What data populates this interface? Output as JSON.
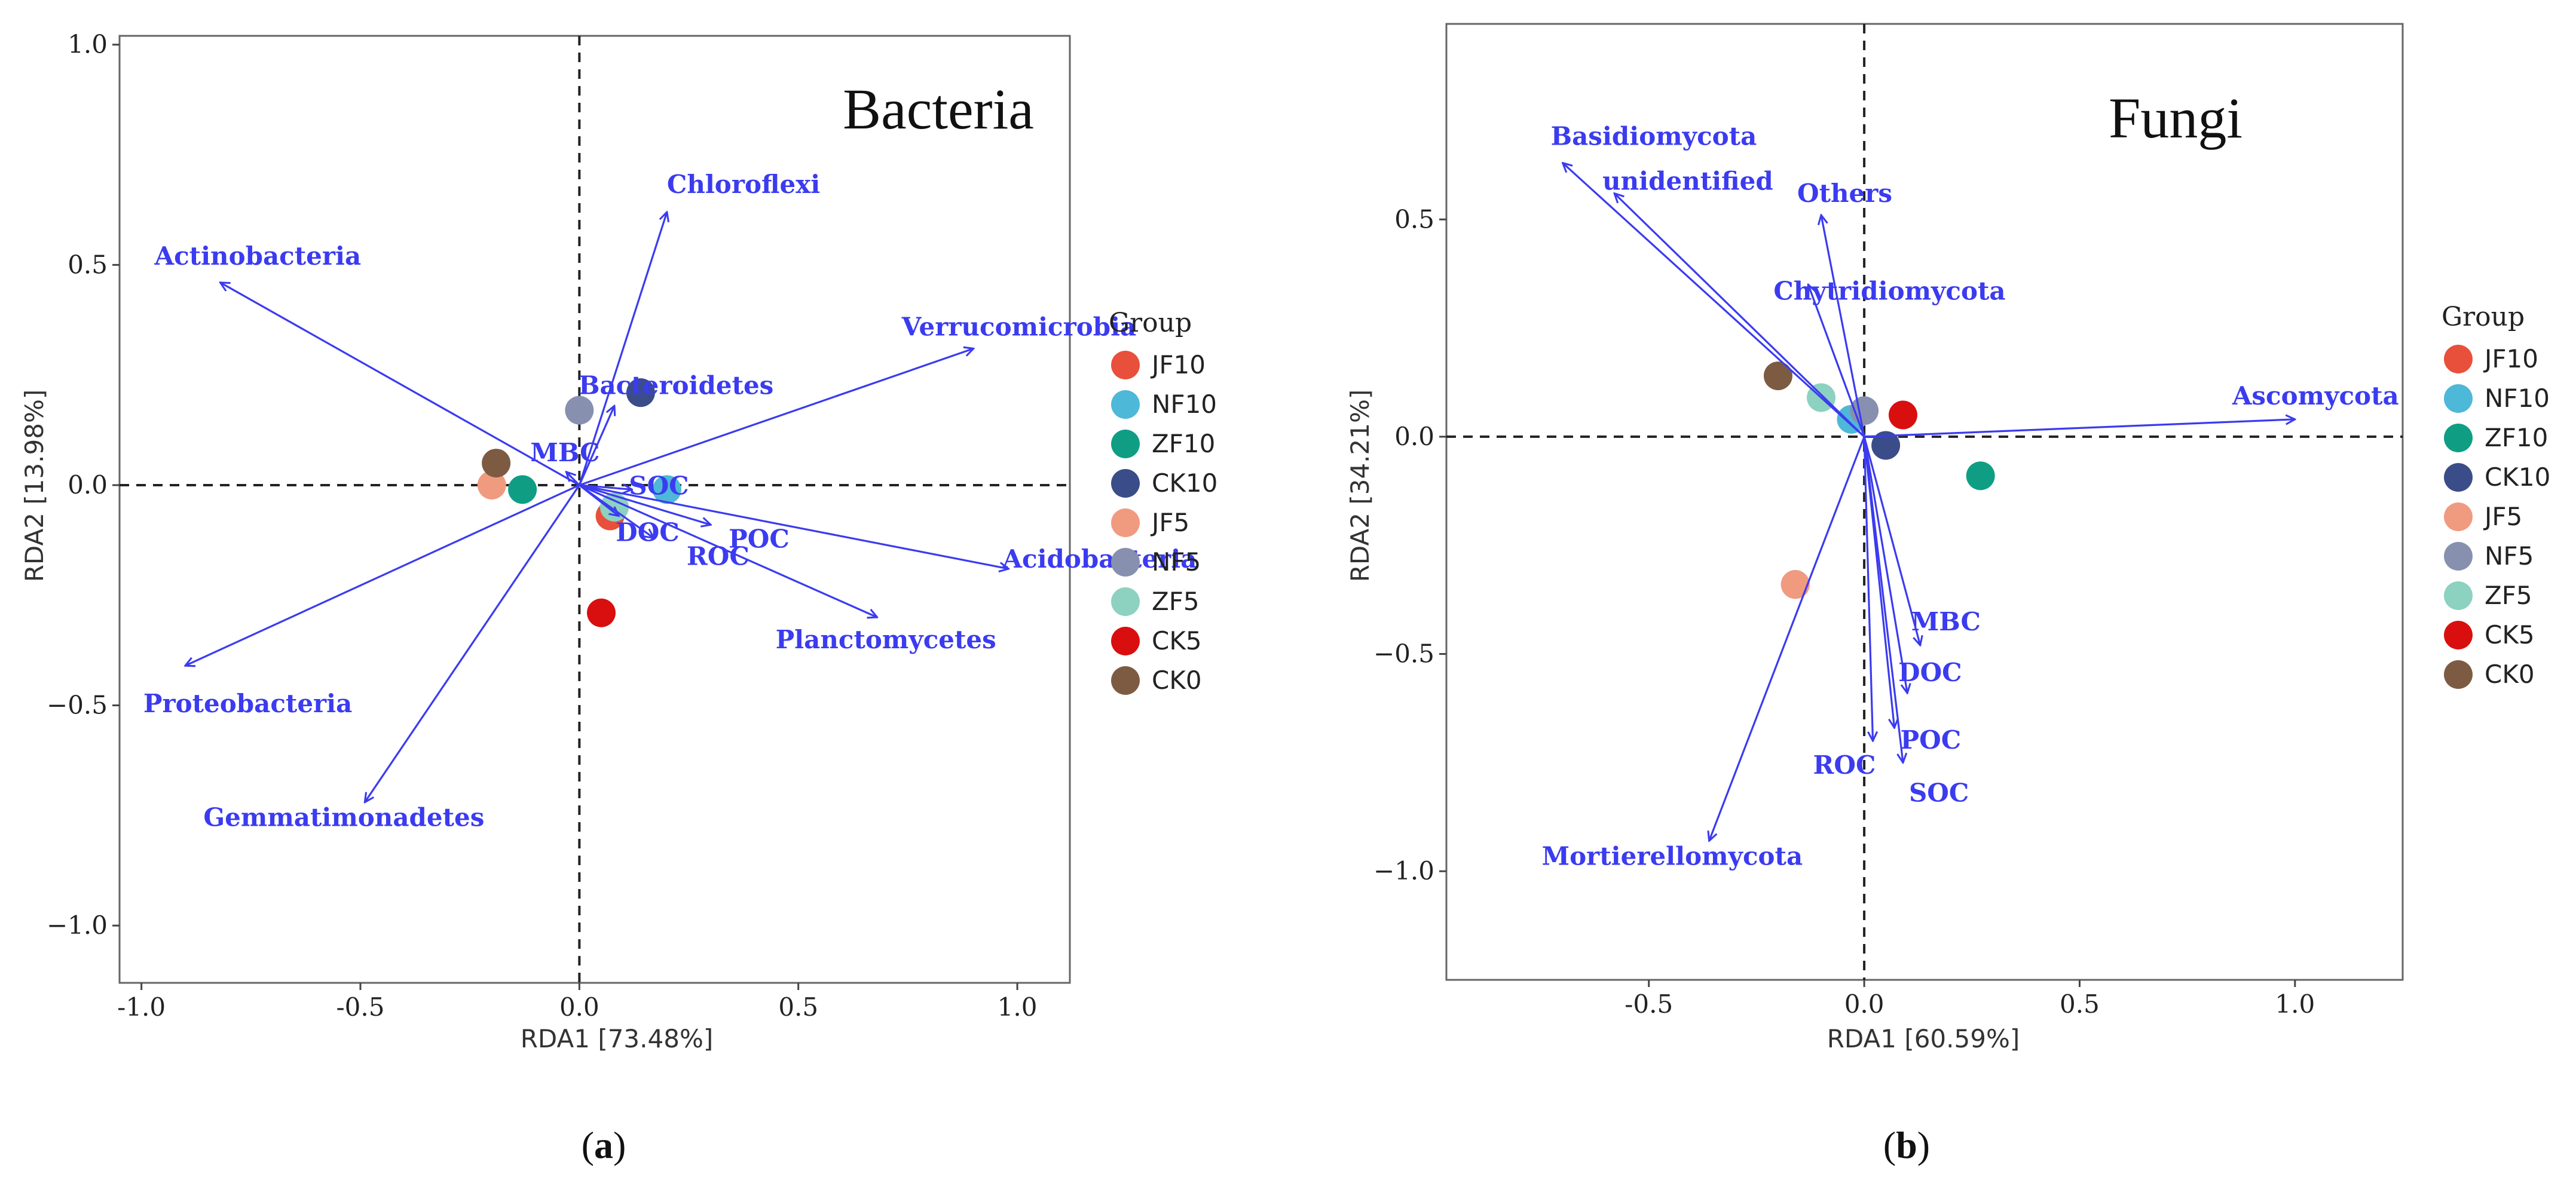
{
  "colors": {
    "vector": "#3b3bf0",
    "axes": "#333333",
    "panel_border": "#666666"
  },
  "groups": [
    {
      "name": "JF10",
      "color": "#e8503c"
    },
    {
      "name": "NF10",
      "color": "#4db8d8"
    },
    {
      "name": "ZF10",
      "color": "#0f9e84"
    },
    {
      "name": "CK10",
      "color": "#3a4d88"
    },
    {
      "name": "JF5",
      "color": "#f09a80"
    },
    {
      "name": "NF5",
      "color": "#8890b0"
    },
    {
      "name": "ZF5",
      "color": "#8dd1c0"
    },
    {
      "name": "CK5",
      "color": "#d90f0f"
    },
    {
      "name": "CK0",
      "color": "#7d5b42"
    }
  ],
  "chart_data": [
    {
      "type": "scatter",
      "title": "Bacteria",
      "caption": "(a)",
      "caption_letter": "a",
      "xlabel": "RDA1 [73.48%]",
      "ylabel": "RDA2 [13.98%]",
      "xlim": [
        -1.05,
        1.12
      ],
      "ylim": [
        -1.13,
        1.02
      ],
      "xticks": [
        {
          "value": -1.0,
          "label": "-1.0"
        },
        {
          "value": -0.5,
          "label": "-0.5"
        },
        {
          "value": 0.0,
          "label": "0.0"
        },
        {
          "value": 0.5,
          "label": "0.5"
        },
        {
          "value": 1.0,
          "label": "1.0"
        }
      ],
      "yticks": [
        {
          "value": 1.0,
          "label": "1.0"
        },
        {
          "value": 0.5,
          "label": "0.5"
        },
        {
          "value": 0.0,
          "label": "0.0"
        },
        {
          "value": -0.5,
          "label": "−0.5"
        },
        {
          "value": -1.0,
          "label": "−1.0"
        }
      ],
      "legend_title": "Group",
      "legend_position": "right",
      "vectors": [
        {
          "label": "Actinobacteria",
          "x": -0.82,
          "y": 0.46
        },
        {
          "label": "Chloroflexi",
          "x": 0.2,
          "y": 0.62
        },
        {
          "label": "Verrucomicrobia",
          "x": 0.9,
          "y": 0.31
        },
        {
          "label": "Bacteroidetes",
          "x": 0.08,
          "y": 0.18
        },
        {
          "label": "MBC",
          "x": -0.03,
          "y": 0.03
        },
        {
          "label": "SOC",
          "x": 0.12,
          "y": -0.01
        },
        {
          "label": "DOC",
          "x": 0.09,
          "y": -0.07
        },
        {
          "label": "POC",
          "x": 0.3,
          "y": -0.09
        },
        {
          "label": "ROC",
          "x": 0.17,
          "y": -0.12
        },
        {
          "label": "Acidobacteria",
          "x": 0.98,
          "y": -0.19
        },
        {
          "label": "Planctomycetes",
          "x": 0.68,
          "y": -0.3
        },
        {
          "label": "Proteobacteria",
          "x": -0.9,
          "y": -0.41
        },
        {
          "label": "Gemmatimonadetes",
          "x": -0.49,
          "y": -0.72
        }
      ],
      "points": [
        {
          "group": "JF10",
          "x": 0.07,
          "y": -0.07
        },
        {
          "group": "NF10",
          "x": 0.2,
          "y": -0.01
        },
        {
          "group": "ZF10",
          "x": -0.13,
          "y": -0.01
        },
        {
          "group": "CK10",
          "x": 0.14,
          "y": 0.21
        },
        {
          "group": "JF5",
          "x": -0.2,
          "y": 0.0
        },
        {
          "group": "NF5",
          "x": 0.0,
          "y": 0.17
        },
        {
          "group": "ZF5",
          "x": 0.08,
          "y": -0.05
        },
        {
          "group": "CK5",
          "x": 0.05,
          "y": -0.29
        },
        {
          "group": "CK0",
          "x": -0.19,
          "y": 0.05
        }
      ]
    },
    {
      "type": "scatter",
      "title": "Fungi",
      "caption": "(b)",
      "caption_letter": "b",
      "xlabel": "RDA1 [60.59%]",
      "ylabel": "RDA2 [34.21%]",
      "xlim": [
        -0.97,
        1.25
      ],
      "ylim": [
        -1.25,
        0.95
      ],
      "xticks": [
        {
          "value": -0.5,
          "label": "-0.5"
        },
        {
          "value": 0.0,
          "label": "0.0"
        },
        {
          "value": 0.5,
          "label": "0.5"
        },
        {
          "value": 1.0,
          "label": "1.0"
        }
      ],
      "yticks": [
        {
          "value": 0.5,
          "label": "0.5"
        },
        {
          "value": 0.0,
          "label": "0.0"
        },
        {
          "value": -0.5,
          "label": "−0.5"
        },
        {
          "value": -1.0,
          "label": "−1.0"
        }
      ],
      "legend_title": "Group",
      "legend_position": "right",
      "vectors": [
        {
          "label": "Basidiomycota",
          "x": -0.7,
          "y": 0.63
        },
        {
          "label": "unidentified",
          "x": -0.58,
          "y": 0.56
        },
        {
          "label": "Others",
          "x": -0.1,
          "y": 0.51
        },
        {
          "label": "Chytridiomycota",
          "x": -0.13,
          "y": 0.35
        },
        {
          "label": "Ascomycota",
          "x": 1.0,
          "y": 0.04
        },
        {
          "label": "MBC",
          "x": 0.13,
          "y": -0.48
        },
        {
          "label": "DOC",
          "x": 0.1,
          "y": -0.59
        },
        {
          "label": "POC",
          "x": 0.07,
          "y": -0.67
        },
        {
          "label": "ROC",
          "x": 0.02,
          "y": -0.7
        },
        {
          "label": "SOC",
          "x": 0.09,
          "y": -0.75
        },
        {
          "label": "Mortierellomycota",
          "x": -0.36,
          "y": -0.93
        }
      ],
      "points": [
        {
          "group": "JF10",
          "x": -0.16,
          "y": -0.34
        },
        {
          "group": "NF10",
          "x": -0.03,
          "y": 0.04
        },
        {
          "group": "ZF10",
          "x": 0.27,
          "y": -0.09
        },
        {
          "group": "CK10",
          "x": 0.05,
          "y": -0.02
        },
        {
          "group": "JF5",
          "x": -0.16,
          "y": -0.34
        },
        {
          "group": "NF5",
          "x": 0.0,
          "y": 0.06
        },
        {
          "group": "ZF5",
          "x": -0.1,
          "y": 0.09
        },
        {
          "group": "CK5",
          "x": 0.09,
          "y": 0.05
        },
        {
          "group": "CK0",
          "x": -0.2,
          "y": 0.14
        }
      ]
    }
  ]
}
